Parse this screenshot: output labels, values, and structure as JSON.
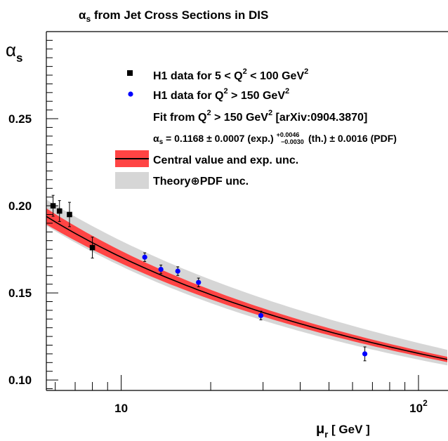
{
  "chart_data": {
    "type": "scatter",
    "title": {
      "symbol": "α",
      "sub": "s",
      "text": " from Jet Cross Sections in DIS"
    },
    "ylabel": {
      "symbol": "α",
      "sub": "s"
    },
    "xlabel": {
      "symbol": "μ",
      "sub": "r",
      "text": " [ GeV ]"
    },
    "x_scale": "log",
    "xlim": [
      5.6,
      125
    ],
    "ylim": [
      0.094,
      0.3
    ],
    "y_ticks": [
      "0.10",
      "0.15",
      "0.20",
      "0.25"
    ],
    "x_ticks": [
      {
        "value": 10,
        "label": "10"
      },
      {
        "value": 100,
        "label": "10",
        "sup": "2"
      }
    ],
    "series": [
      {
        "name": "H1 data for 5 < Q² < 100 GeV²",
        "marker": "square",
        "color": "#000000",
        "points": [
          {
            "x": 5.9,
            "y": 0.2,
            "err": 0.006
          },
          {
            "x": 6.2,
            "y": 0.197,
            "err": 0.006
          },
          {
            "x": 6.7,
            "y": 0.195,
            "err": 0.007
          },
          {
            "x": 8.0,
            "y": 0.176,
            "err": 0.006
          }
        ]
      },
      {
        "name": "H1 data for Q² > 150 GeV²",
        "marker": "circle",
        "color": "#0000ff",
        "points": [
          {
            "x": 12.0,
            "y": 0.1705,
            "err": 0.0025
          },
          {
            "x": 13.6,
            "y": 0.1635,
            "err": 0.0025
          },
          {
            "x": 15.5,
            "y": 0.1625,
            "err": 0.0025
          },
          {
            "x": 18.2,
            "y": 0.156,
            "err": 0.0025
          },
          {
            "x": 29.5,
            "y": 0.137,
            "err": 0.0025
          },
          {
            "x": 66.0,
            "y": 0.115,
            "err": 0.004
          }
        ]
      }
    ],
    "fit": {
      "alpha_mz": 0.1168,
      "exp_unc": 0.0007,
      "theory_unc_rel_low": 0.05,
      "theory_unc_rel_high": 0.11,
      "colors": {
        "line": "#000000",
        "exp_band": "#ff4444",
        "theory_band": "#d6d6d6"
      }
    },
    "legend": {
      "items": [
        {
          "label_parts": [
            "H1 data for 5 < Q",
            "2",
            " < 100 GeV",
            "2"
          ]
        },
        {
          "label_parts": [
            "H1 data for Q",
            "2",
            " > 150 GeV",
            "2"
          ]
        }
      ],
      "fit_line": {
        "label_parts": [
          "Fit from Q",
          "2",
          " > 150 GeV",
          "2",
          " [arXiv:0904.3870]"
        ]
      },
      "formula": {
        "lhs": "α",
        "lhs_sub": "s",
        "part1": " = 0.1168 ± 0.0007 (exp.) ",
        "up": "+0.0046",
        "down": "−0.0030",
        "part2": " (th.) ± 0.0016 (PDF)"
      },
      "central": "Central value and exp. unc.",
      "theory": "Theory⊕PDF unc."
    }
  }
}
